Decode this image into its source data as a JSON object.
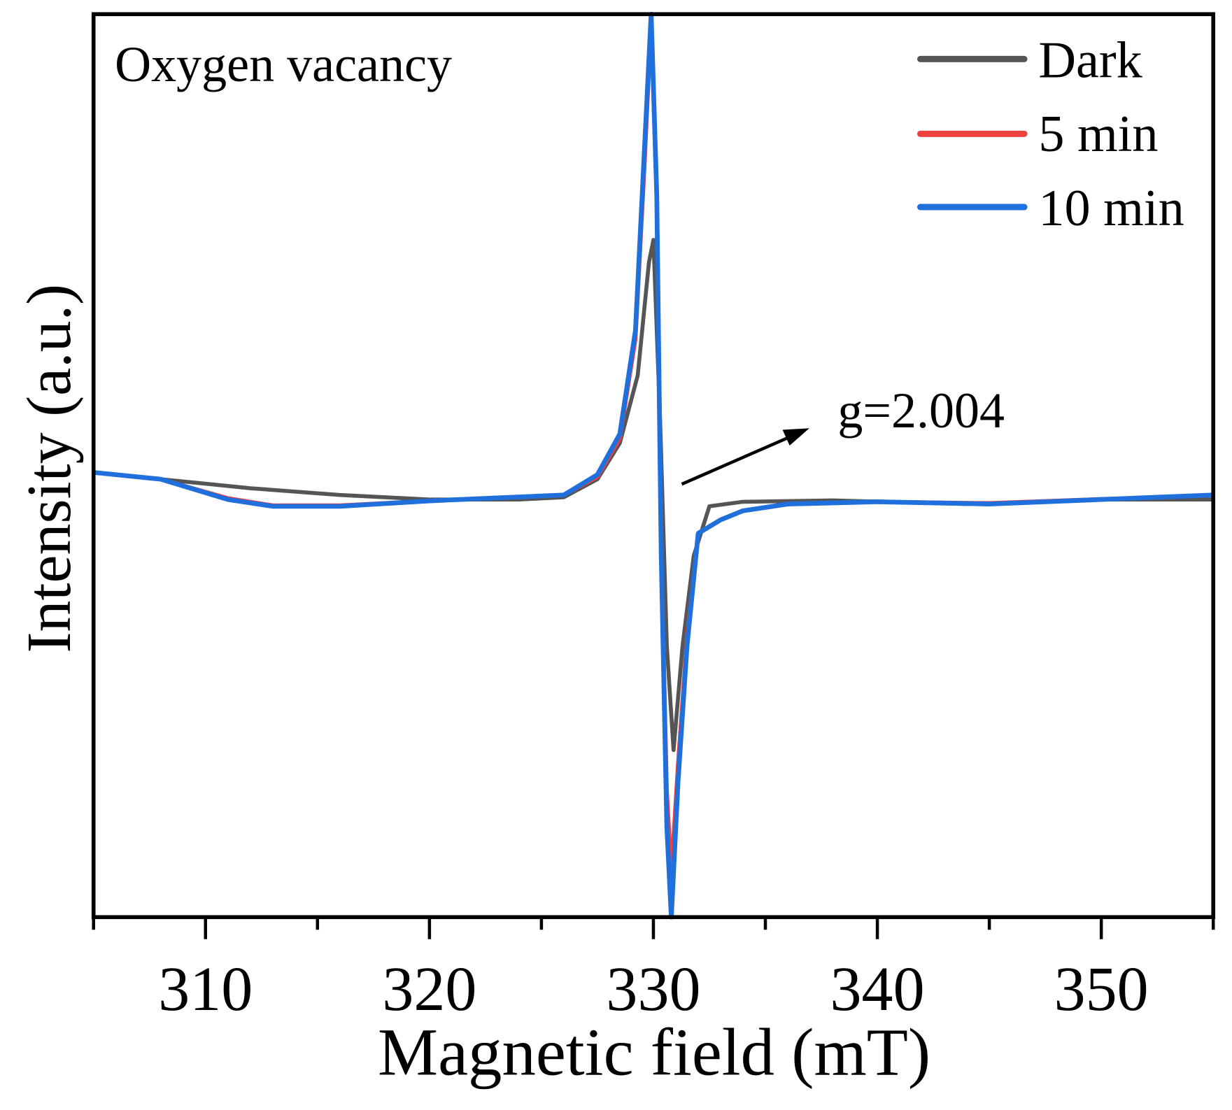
{
  "chart_data": {
    "type": "line",
    "title": "",
    "xlabel": "Magnetic field (mT)",
    "ylabel": "Intensity (a.u.)",
    "xlim": [
      305,
      355
    ],
    "ylim": [
      -1,
      1
    ],
    "xticks": [
      310,
      320,
      330,
      340,
      350
    ],
    "xtick_labels": [
      "310",
      "320",
      "330",
      "340",
      "350"
    ],
    "yticks_shown": false,
    "grid": false,
    "legend_position": "top-right",
    "annotations": {
      "corner_label": "Oxygen vacancy",
      "g_value": "g=2.004"
    },
    "series": [
      {
        "name": "Dark",
        "color": "#555555",
        "x": [
          305,
          308,
          312,
          316,
          320,
          324,
          326,
          327.5,
          328.5,
          329.3,
          329.8,
          330.0,
          330.3,
          330.6,
          330.9,
          331.3,
          331.8,
          332.5,
          334,
          338,
          344,
          350,
          355
        ],
        "y": [
          -0.015,
          -0.03,
          -0.05,
          -0.065,
          -0.075,
          -0.075,
          -0.07,
          -0.03,
          0.05,
          0.2,
          0.45,
          0.5,
          0.1,
          -0.4,
          -0.63,
          -0.4,
          -0.2,
          -0.09,
          -0.08,
          -0.077,
          -0.085,
          -0.075,
          -0.075
        ]
      },
      {
        "name": "5 min",
        "color": "#ef4040",
        "x": [
          305,
          308,
          311,
          313,
          316,
          320,
          326,
          327.5,
          328.5,
          329.2,
          329.6,
          329.9,
          330.15,
          330.35,
          330.6,
          330.8,
          331.1,
          331.5,
          332,
          333,
          334,
          336,
          340,
          345,
          350,
          355
        ],
        "y": [
          -0.015,
          -0.03,
          -0.072,
          -0.088,
          -0.088,
          -0.078,
          -0.065,
          -0.025,
          0.06,
          0.28,
          0.66,
          0.98,
          0.58,
          -0.18,
          -0.72,
          -0.9,
          -0.66,
          -0.38,
          -0.15,
          -0.12,
          -0.1,
          -0.085,
          -0.08,
          -0.083,
          -0.074,
          -0.066
        ]
      },
      {
        "name": "10 min",
        "color": "#1f6fdc",
        "x": [
          305,
          308,
          311,
          313,
          316,
          320,
          326,
          327.5,
          328.5,
          329.2,
          329.6,
          329.9,
          330.15,
          330.35,
          330.6,
          330.8,
          331.1,
          331.5,
          332,
          333,
          334,
          336,
          340,
          345,
          350,
          355
        ],
        "y": [
          -0.015,
          -0.03,
          -0.075,
          -0.09,
          -0.09,
          -0.078,
          -0.065,
          -0.02,
          0.07,
          0.3,
          0.7,
          1.0,
          0.6,
          -0.2,
          -0.8,
          -1.0,
          -0.7,
          -0.4,
          -0.15,
          -0.12,
          -0.1,
          -0.085,
          -0.08,
          -0.085,
          -0.075,
          -0.065
        ]
      }
    ]
  }
}
